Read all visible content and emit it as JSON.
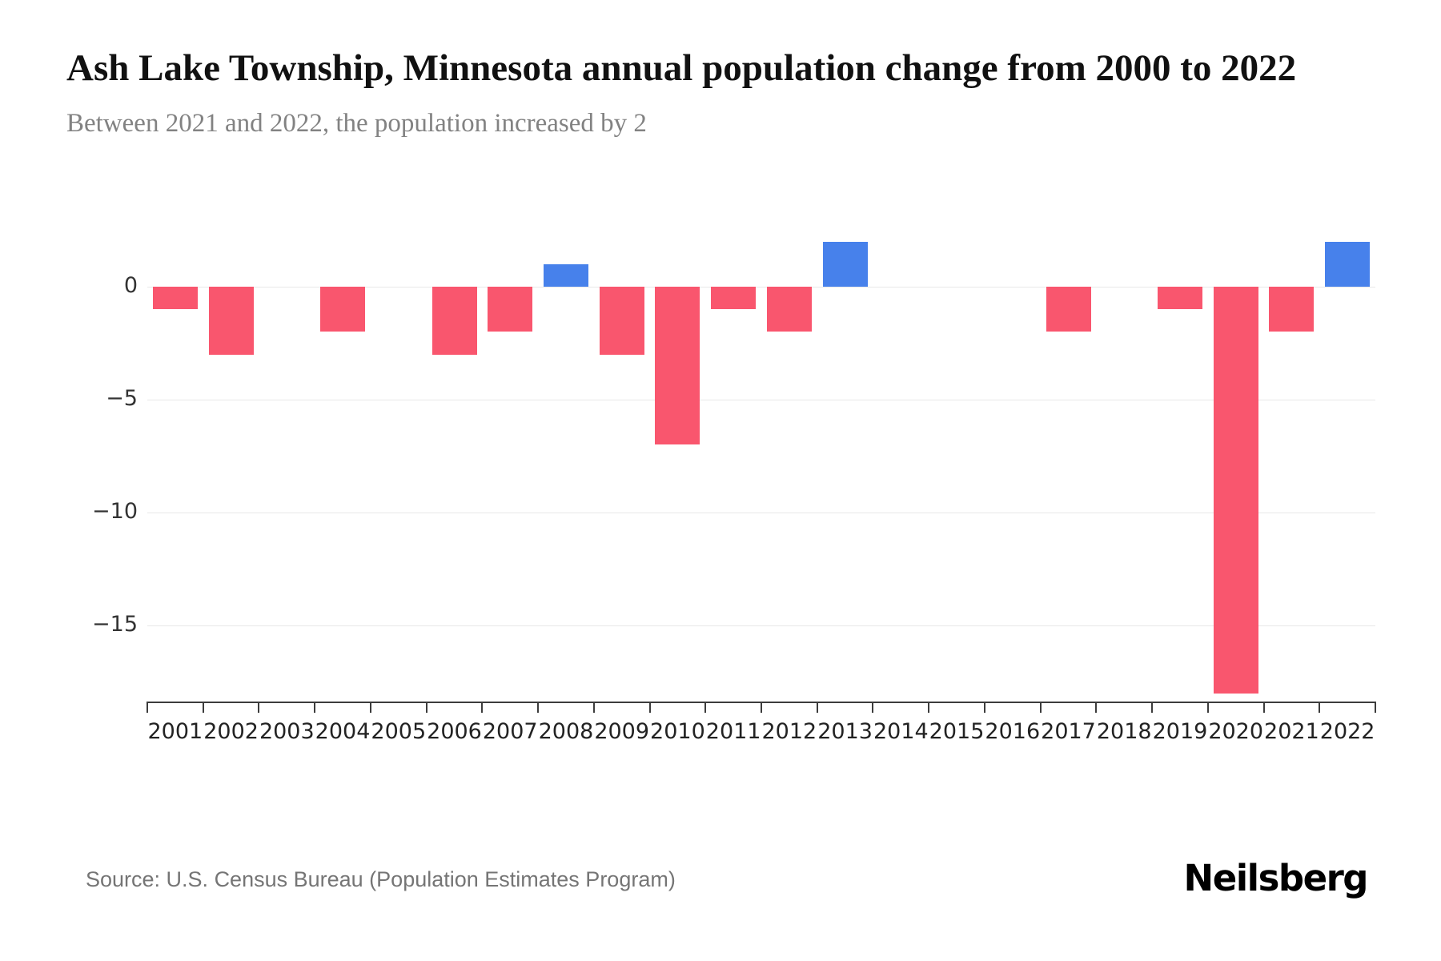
{
  "header": {
    "title": "Ash Lake Township, Minnesota annual population change from 2000 to 2022",
    "subtitle": "Between 2021 and 2022, the population increased by 2"
  },
  "chart_data": {
    "type": "bar",
    "title": "Ash Lake Township, Minnesota annual population change from 2000 to 2022",
    "subtitle": "Between 2021 and 2022, the population increased by 2",
    "categories": [
      "2001",
      "2002",
      "2003",
      "2004",
      "2005",
      "2006",
      "2007",
      "2008",
      "2009",
      "2010",
      "2011",
      "2012",
      "2013",
      "2014",
      "2015",
      "2016",
      "2017",
      "2018",
      "2019",
      "2020",
      "2021",
      "2022"
    ],
    "values": [
      -1,
      -3,
      0,
      -2,
      0,
      -3,
      -2,
      1,
      -3,
      -7,
      -1,
      -2,
      2,
      0,
      0,
      0,
      -2,
      0,
      -1,
      -18,
      -2,
      2
    ],
    "xlabel": "",
    "ylabel": "",
    "yticks": [
      0,
      -5,
      -10,
      -15
    ],
    "ylim": [
      -18.5,
      2
    ],
    "grid": true,
    "legend": false,
    "positive_color": "#4781eb",
    "negative_color": "#f9566e",
    "gridline_color": "#e8e8e8"
  },
  "footer": {
    "source": "Source: U.S. Census Bureau (Population Estimates Program)",
    "logo": "Neilsberg"
  }
}
